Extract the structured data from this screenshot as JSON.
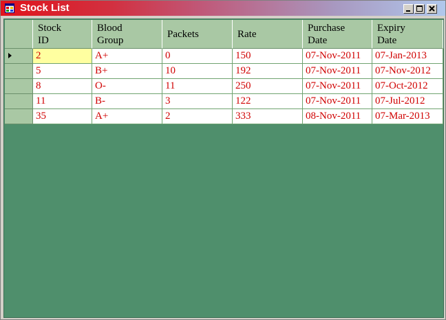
{
  "window": {
    "title": "Stock List",
    "titlebar_colors": [
      "#e0141c",
      "#b0c8ec"
    ]
  },
  "grid": {
    "background_color": "#4f8f6c",
    "header_color": "#a9c8a4",
    "text_color": "#d00000",
    "selected_cell_color": "#ffffa0",
    "columns": [
      {
        "line1": "Stock",
        "line2": "ID"
      },
      {
        "line1": "Blood",
        "line2": "Group"
      },
      {
        "line1": "Packets",
        "line2": ""
      },
      {
        "line1": "Rate",
        "line2": ""
      },
      {
        "line1": "Purchase",
        "line2": "Date"
      },
      {
        "line1": "Expiry",
        "line2": "Date"
      }
    ],
    "rows": [
      [
        "2",
        "A+",
        "0",
        "150",
        "07-Nov-2011",
        "07-Jan-2013"
      ],
      [
        "5",
        "B+",
        "10",
        "192",
        "07-Nov-2011",
        "07-Nov-2012"
      ],
      [
        "8",
        "O-",
        "11",
        "250",
        "07-Nov-2011",
        "07-Oct-2012"
      ],
      [
        "11",
        "B-",
        "3",
        "122",
        "07-Nov-2011",
        "07-Jul-2012"
      ],
      [
        "35",
        "A+",
        "2",
        "333",
        "08-Nov-2011",
        "07-Mar-2013"
      ]
    ],
    "current_row": 0
  }
}
